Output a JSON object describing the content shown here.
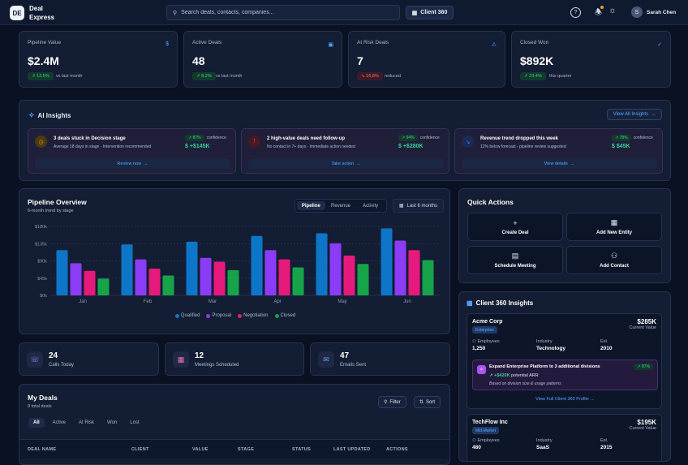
{
  "topbar": {
    "brand_line1": "Deal",
    "brand_line2": "Express",
    "logo_text": "DE",
    "search_placeholder": "Search deals, contacts, companies...",
    "client360_label": "Client 360",
    "user_name": "Sarah Chen",
    "user_initial": "S"
  },
  "kpis": [
    {
      "label": "Pipeline Value",
      "value": "$2.4M",
      "change": "12.5%",
      "direction": "up",
      "sub": "vs last month",
      "icon": "dollar-icon"
    },
    {
      "label": "Active Deals",
      "value": "48",
      "change": "8.2%",
      "direction": "up",
      "sub": "vs last month",
      "icon": "briefcase-icon"
    },
    {
      "label": "At Risk Deals",
      "value": "7",
      "change": "16.8%",
      "direction": "down",
      "sub": "reduced",
      "icon": "alert-icon"
    },
    {
      "label": "Closed Won",
      "value": "$892K",
      "change": "23.4%",
      "direction": "up",
      "sub": "this quarter",
      "icon": "check-circle-icon"
    }
  ],
  "ai": {
    "title": "AI Insights",
    "view_all": "View All Insights",
    "cards": [
      {
        "title": "3 deals stuck in Decision stage",
        "desc": "Average 18 days in stage - Intervention recommended",
        "confidence": "87%",
        "confidence_label": "confidence",
        "amount": "+$145K",
        "action": "Review now",
        "accent": "#f59e0b"
      },
      {
        "title": "2 high-value deals need follow-up",
        "desc": "No contact in 7+ days - Immediate action needed",
        "confidence": "94%",
        "confidence_label": "confidence",
        "amount": "+$280K",
        "action": "Take action",
        "accent": "#ef4444"
      },
      {
        "title": "Revenue trend dropped this week",
        "desc": "12% below forecast - pipeline review suggested",
        "confidence": "78%",
        "confidence_label": "confidence",
        "amount": "$45K",
        "action": "View details",
        "accent": "#3b82f6"
      }
    ]
  },
  "pipeline": {
    "title": "Pipeline Overview",
    "subtitle": "6-month trend by stage",
    "tabs": [
      "Pipeline",
      "Revenue",
      "Activity"
    ],
    "range": "Last 6 months"
  },
  "chart_data": {
    "type": "bar",
    "categories": [
      "Jan",
      "Feb",
      "Mar",
      "Apr",
      "May",
      "Jun"
    ],
    "ylim": [
      0,
      180
    ],
    "yticks": [
      "$0k",
      "$45k",
      "$90k",
      "$135k",
      "$180k"
    ],
    "series": [
      {
        "name": "Qualified",
        "color": "#0e76c8",
        "values": [
          118,
          133,
          140,
          155,
          162,
          175
        ]
      },
      {
        "name": "Proposal",
        "color": "#8b3cf6",
        "values": [
          84,
          94,
          98,
          118,
          136,
          143
        ]
      },
      {
        "name": "Negotiation",
        "color": "#e61a7c",
        "values": [
          64,
          70,
          88,
          94,
          104,
          118
        ]
      },
      {
        "name": "Closed",
        "color": "#17a34a",
        "values": [
          44,
          52,
          66,
          73,
          82,
          92
        ]
      }
    ]
  },
  "quick": {
    "title": "Quick Actions",
    "items": [
      {
        "label": "Create Deal",
        "icon": "+"
      },
      {
        "label": "Add New Entity",
        "icon": "▦"
      },
      {
        "label": "Schedule Meeting",
        "icon": "▤"
      },
      {
        "label": "Add Contact",
        "icon": "⚇"
      }
    ]
  },
  "stats": [
    {
      "value": "24",
      "label": "Calls Today",
      "icon": "☏",
      "color": "#a78bfa"
    },
    {
      "value": "12",
      "label": "Meetings Scheduled",
      "icon": "▦",
      "color": "#f472b6"
    },
    {
      "value": "47",
      "label": "Emails Sent",
      "icon": "✉",
      "color": "#60a5fa"
    }
  ],
  "deals": {
    "title": "My Deals",
    "subtitle": "9 total deals",
    "filter": "Filter",
    "sort": "Sort",
    "tabs": [
      "All",
      "Active",
      "At Risk",
      "Won",
      "Lost"
    ],
    "columns": [
      "DEAL NAME",
      "CLIENT",
      "VALUE",
      "STAGE",
      "STATUS",
      "LAST UPDATED",
      "ACTIONS"
    ]
  },
  "client360": {
    "title": "Client 360 Insights",
    "companies": [
      {
        "name": "Acme Corp",
        "value": "$285K",
        "value_label": "Current Value",
        "tag": "Enterprise",
        "employees_label": "Employees",
        "employees": "1,250",
        "industry_label": "Industry",
        "industry": "Technology",
        "est_label": "Est.",
        "est": "2010",
        "rec_title": "Expand Enterprise Platform to 3 additional divisions",
        "rec_conf": "87%",
        "rec_amount": "+$420K",
        "rec_amount_label": "potential ARR",
        "rec_note": "Based on division size & usage patterns",
        "link": "View Full Client 360 Profile"
      },
      {
        "name": "TechFlow Inc",
        "value": "$195K",
        "value_label": "Current Value",
        "tag": "Mid-Market",
        "employees_label": "Employees",
        "employees": "480",
        "industry_label": "Industry",
        "industry": "SaaS",
        "est_label": "Est.",
        "est": "2015"
      }
    ]
  }
}
